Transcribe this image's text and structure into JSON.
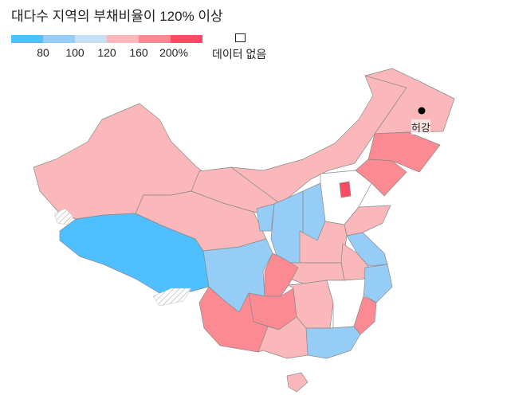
{
  "title": "대다수 지역의 부채비율이 120% 이상",
  "legend": {
    "colors": [
      "#4fbfff",
      "#95cdf7",
      "#c5dff5",
      "#fbb8ba",
      "#fb8a93",
      "#fb4b62"
    ],
    "ticks": [
      "80",
      "100",
      "120",
      "160",
      "200%"
    ],
    "no_data_label": "데이터 없음",
    "no_data_color": "#ffffff"
  },
  "map": {
    "city_label": "허강",
    "regions": [
      {
        "name": "Xinjiang",
        "bin": 3
      },
      {
        "name": "Tibet",
        "bin": 0
      },
      {
        "name": "Qinghai",
        "bin": 3
      },
      {
        "name": "Gansu",
        "bin": 3
      },
      {
        "name": "Inner Mongolia",
        "bin": 3
      },
      {
        "name": "Heilongjiang",
        "bin": 3
      },
      {
        "name": "Jilin",
        "bin": 4
      },
      {
        "name": "Liaoning",
        "bin": 4
      },
      {
        "name": "Hebei",
        "bin": -1
      },
      {
        "name": "Beijing",
        "bin": 5
      },
      {
        "name": "Shanxi",
        "bin": 1
      },
      {
        "name": "Shaanxi",
        "bin": 1
      },
      {
        "name": "Ningxia",
        "bin": 1
      },
      {
        "name": "Shandong",
        "bin": 3
      },
      {
        "name": "Henan",
        "bin": 3
      },
      {
        "name": "Jiangsu",
        "bin": 1
      },
      {
        "name": "Anhui",
        "bin": 3
      },
      {
        "name": "Zhejiang",
        "bin": 1
      },
      {
        "name": "Hubei",
        "bin": 3
      },
      {
        "name": "Sichuan",
        "bin": 1
      },
      {
        "name": "Chongqing",
        "bin": 4
      },
      {
        "name": "Guizhou",
        "bin": 4
      },
      {
        "name": "Yunnan",
        "bin": 4
      },
      {
        "name": "Hunan",
        "bin": 3
      },
      {
        "name": "Jiangxi",
        "bin": -1
      },
      {
        "name": "Fujian",
        "bin": 4
      },
      {
        "name": "Guangdong",
        "bin": 1
      },
      {
        "name": "Guangxi",
        "bin": 3
      },
      {
        "name": "Hainan",
        "bin": 3
      }
    ]
  }
}
